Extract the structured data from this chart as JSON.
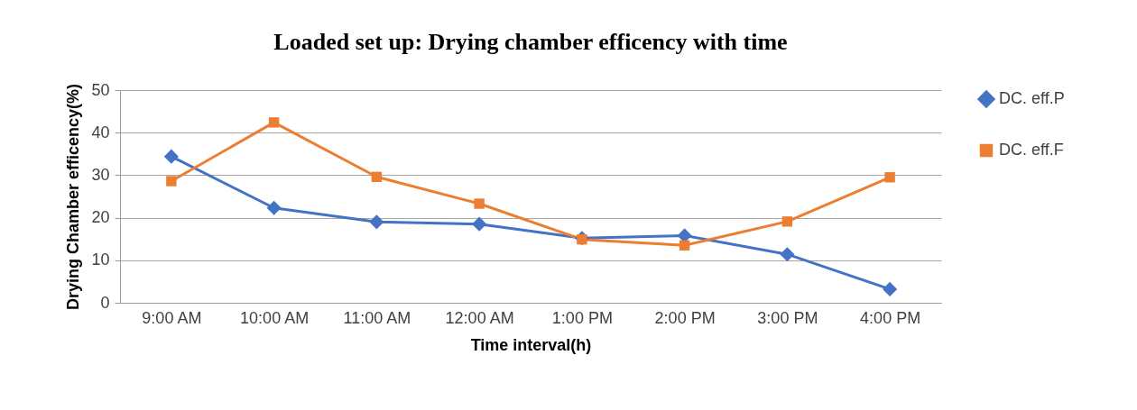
{
  "chart_data": {
    "type": "line",
    "title": "Loaded set up: Drying chamber efficency with time",
    "xlabel": "Time interval(h)",
    "ylabel": "Drying  Chamber efficency(%)",
    "categories": [
      "9:00 AM",
      "10:00 AM",
      "11:00 AM",
      "12:00 AM",
      "1:00 PM",
      "2:00 PM",
      "3:00 PM",
      "4:00 PM"
    ],
    "series": [
      {
        "name": "DC. eff.P",
        "color": "#4472c4",
        "marker": "diamond",
        "values": [
          34.4,
          22.3,
          19.0,
          18.5,
          15.2,
          15.8,
          11.4,
          3.2
        ]
      },
      {
        "name": "DC. eff.F",
        "color": "#ed7d31",
        "marker": "square",
        "values": [
          28.6,
          42.4,
          29.6,
          23.3,
          14.9,
          13.5,
          19.1,
          29.5
        ]
      }
    ],
    "ylim": [
      0,
      50
    ],
    "yticks": [
      0,
      10,
      20,
      30,
      40,
      50
    ],
    "grid": "y",
    "legend": "right",
    "line_style": "solid"
  }
}
